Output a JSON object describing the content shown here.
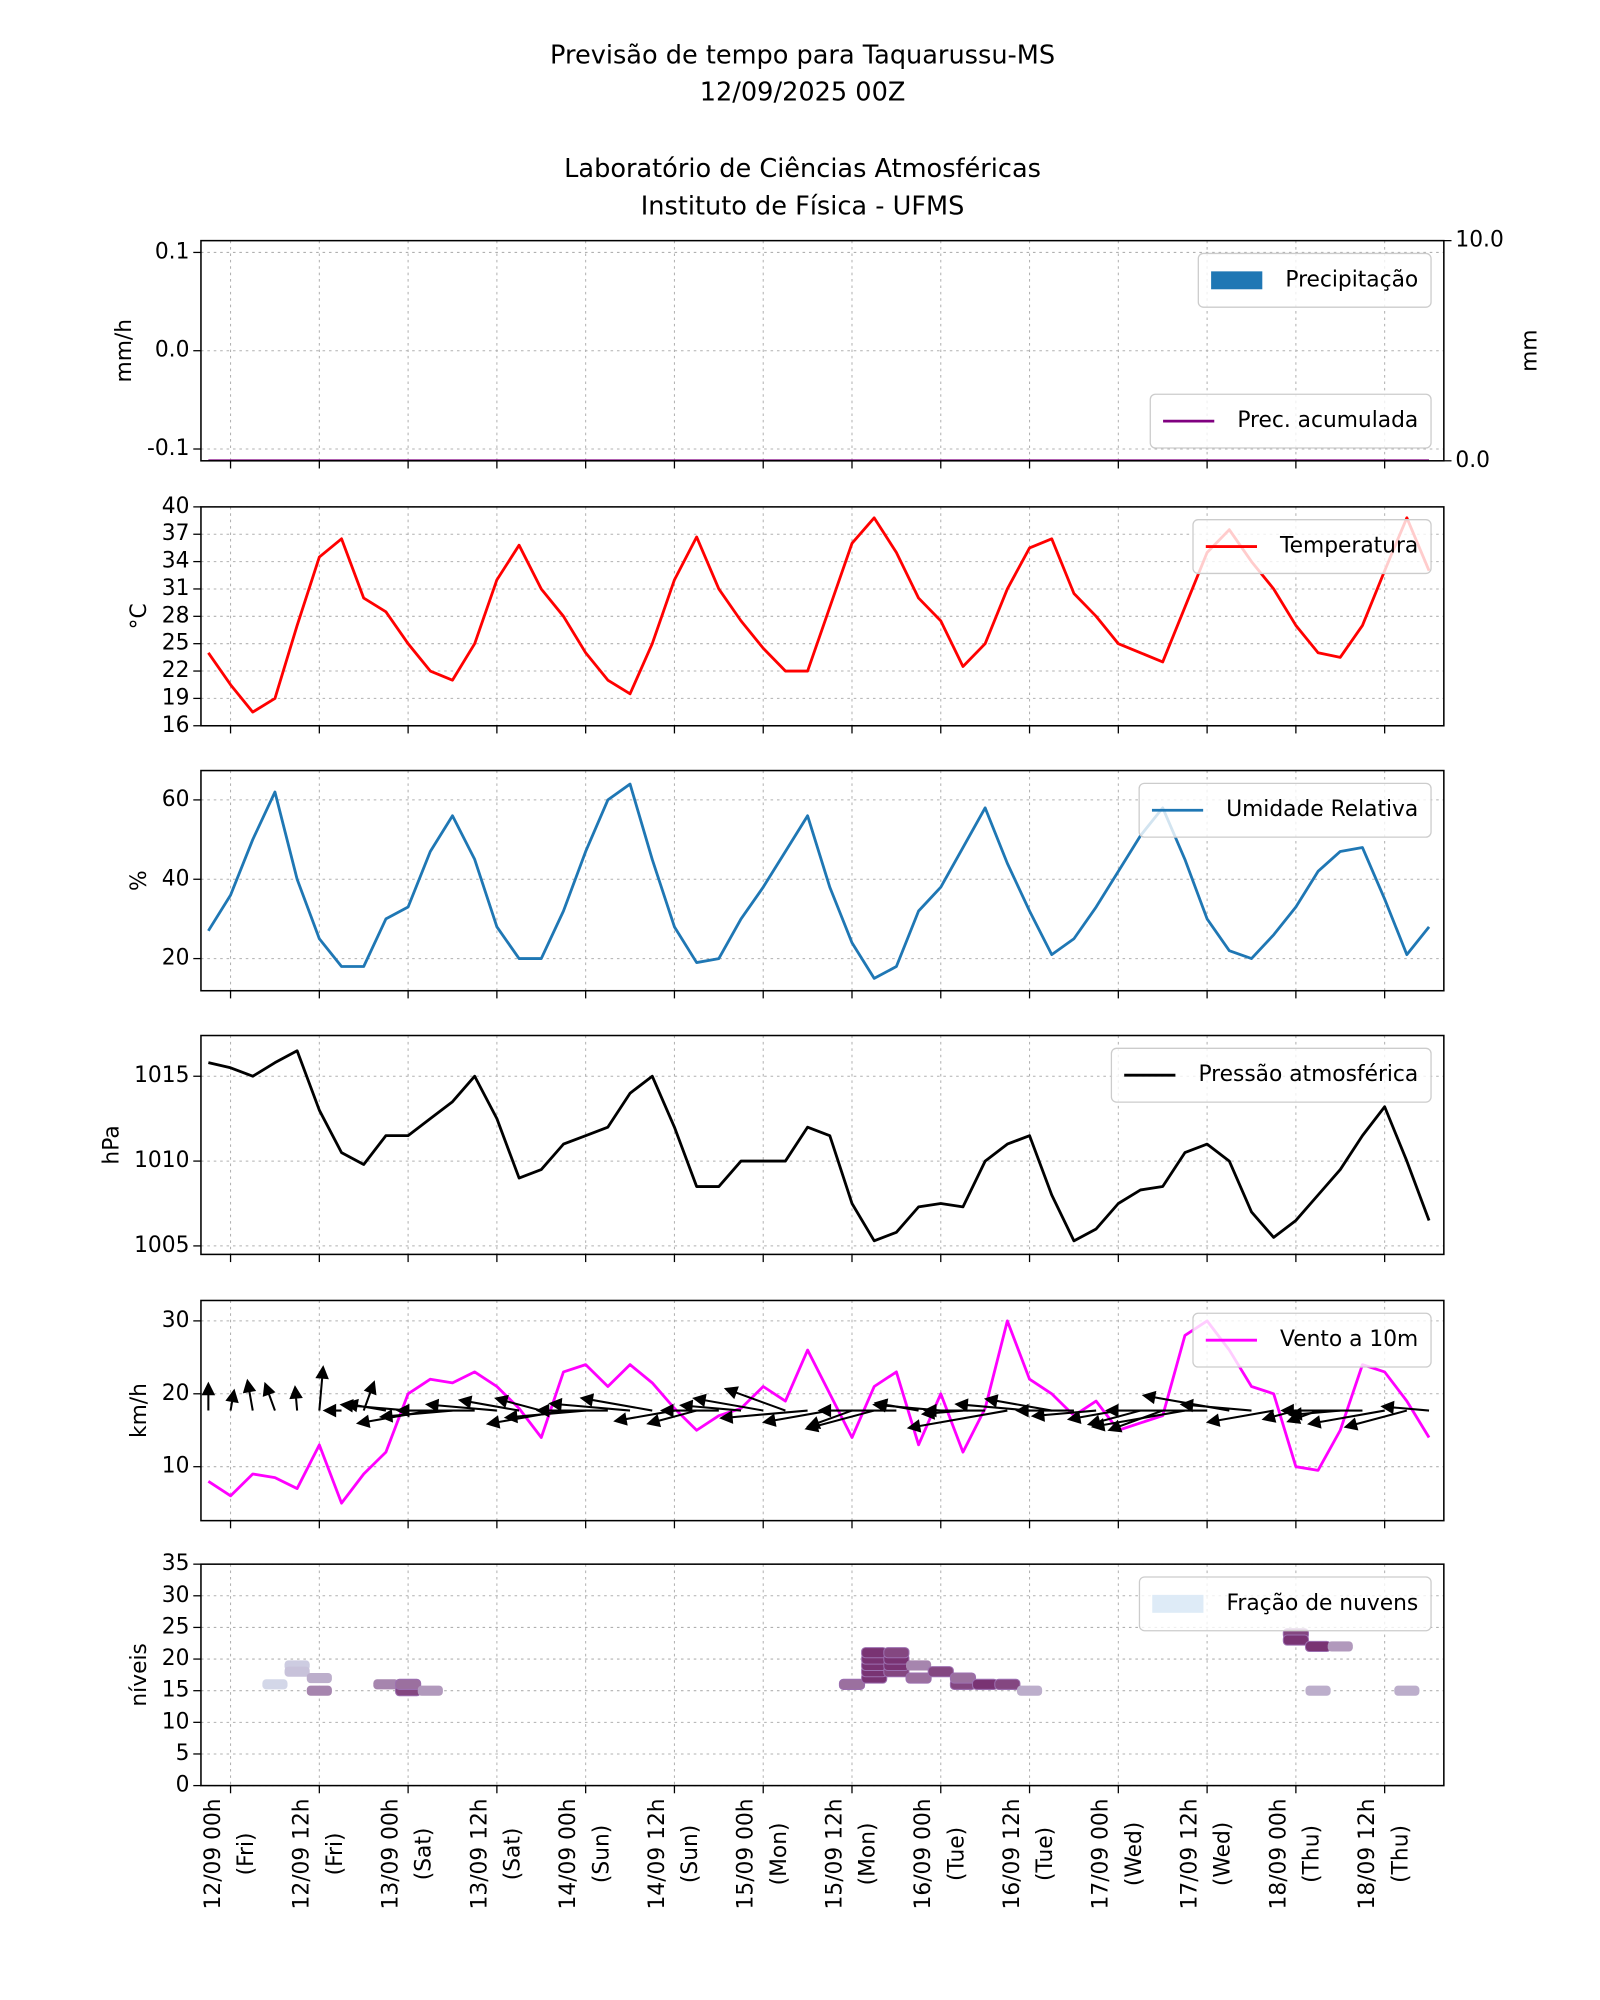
{
  "header": {
    "title": "Previsão de tempo para Taquarussu-MS",
    "subtitle": "12/09/2025 00Z",
    "lab": "Laboratório de Ciências Atmosféricas",
    "institute": "Instituto de Física - UFMS"
  },
  "chart_data": [
    {
      "type": "bar",
      "ylabel": "mm/h",
      "y2label": "mm",
      "grid": true,
      "legend": "upper right",
      "xlim": [
        -4,
        164
      ],
      "ylim": [
        -0.112,
        0.112
      ],
      "yticks": [
        0.1,
        {
          "value": 0,
          "label": "0.0"
        },
        -0.1
      ],
      "y2lim": [
        0,
        10
      ],
      "y2ticks": [
        {
          "value": 10,
          "label": "10.0"
        },
        {
          "value": 0,
          "label": "0.0"
        }
      ],
      "x": [
        -3,
        0,
        3,
        6,
        9,
        12,
        15,
        18,
        21,
        24,
        27,
        30,
        33,
        36,
        39,
        42,
        45,
        48,
        51,
        54,
        57,
        60,
        63,
        66,
        69,
        72,
        75,
        78,
        81,
        84,
        87,
        90,
        93,
        96,
        99,
        102,
        105,
        108,
        111,
        114,
        117,
        120,
        123,
        126,
        129,
        132,
        135,
        138,
        141,
        144,
        147,
        150,
        153,
        156,
        159,
        162
      ],
      "series": [
        {
          "name": "Precipitação",
          "color": "#1f77b4",
          "values": [
            0,
            0,
            0,
            0,
            0,
            0,
            0,
            0,
            0,
            0,
            0,
            0,
            0,
            0,
            0,
            0,
            0,
            0,
            0,
            0,
            0,
            0,
            0,
            0,
            0,
            0,
            0,
            0,
            0,
            0,
            0,
            0,
            0,
            0,
            0,
            0,
            0,
            0,
            0,
            0,
            0,
            0,
            0,
            0,
            0,
            0,
            0,
            0,
            0,
            0,
            0,
            0,
            0,
            0,
            0,
            0
          ]
        },
        {
          "name": "Prec. acumulada",
          "color": "#800080",
          "kind": "line",
          "axis": "y2",
          "legend": "lower right",
          "values": [
            0,
            0,
            0,
            0,
            0,
            0,
            0,
            0,
            0,
            0,
            0,
            0,
            0,
            0,
            0,
            0,
            0,
            0,
            0,
            0,
            0,
            0,
            0,
            0,
            0,
            0,
            0,
            0,
            0,
            0,
            0,
            0,
            0,
            0,
            0,
            0,
            0,
            0,
            0,
            0,
            0,
            0,
            0,
            0,
            0,
            0,
            0,
            0,
            0,
            0,
            0,
            0,
            0,
            0,
            0,
            0
          ]
        }
      ]
    },
    {
      "type": "line",
      "ylabel": "°C",
      "grid": true,
      "legend": "upper right",
      "xlim": [
        -4,
        164
      ],
      "ylim": [
        16,
        40
      ],
      "yticks": [
        16,
        19,
        22,
        25,
        28,
        31,
        34,
        37,
        40
      ],
      "x": [
        -3,
        0,
        3,
        6,
        9,
        12,
        15,
        18,
        21,
        24,
        27,
        30,
        33,
        36,
        39,
        42,
        45,
        48,
        51,
        54,
        57,
        60,
        63,
        66,
        69,
        72,
        75,
        78,
        81,
        84,
        87,
        90,
        93,
        96,
        99,
        102,
        105,
        108,
        111,
        114,
        117,
        120,
        123,
        126,
        129,
        132,
        135,
        138,
        141,
        144,
        147,
        150,
        153,
        156,
        159,
        162
      ],
      "series": [
        {
          "name": "Temperatura",
          "color": "#ff0000",
          "values": [
            24,
            20.5,
            17.5,
            19,
            27,
            34.5,
            36.5,
            30,
            28.5,
            25,
            22,
            21,
            25,
            32,
            35.8,
            31,
            28,
            24,
            21,
            19.5,
            25,
            32,
            36.7,
            31,
            27.5,
            24.5,
            22,
            22,
            29,
            36,
            38.8,
            35,
            30,
            27.5,
            22.5,
            25,
            31,
            35.5,
            36.5,
            30.5,
            28,
            25,
            24,
            23,
            29,
            35,
            37.5,
            34,
            31,
            27,
            24,
            23.5,
            27,
            33,
            38.8,
            33
          ]
        }
      ]
    },
    {
      "type": "line",
      "ylabel": "%",
      "grid": true,
      "legend": "upper right",
      "xlim": [
        -4,
        164
      ],
      "ylim": [
        11.9,
        67.4
      ],
      "yticks": [
        20,
        40,
        60
      ],
      "x": [
        -3,
        0,
        3,
        6,
        9,
        12,
        15,
        18,
        21,
        24,
        27,
        30,
        33,
        36,
        39,
        42,
        45,
        48,
        51,
        54,
        57,
        60,
        63,
        66,
        69,
        72,
        75,
        78,
        81,
        84,
        87,
        90,
        93,
        96,
        99,
        102,
        105,
        108,
        111,
        114,
        117,
        120,
        123,
        126,
        129,
        132,
        135,
        138,
        141,
        144,
        147,
        150,
        153,
        156,
        159,
        162
      ],
      "series": [
        {
          "name": "Umidade Relativa",
          "color": "#1f77b4",
          "values": [
            27,
            36,
            50,
            62,
            40,
            25,
            18,
            18,
            30,
            33,
            47,
            56,
            45,
            28,
            20,
            20,
            32,
            47,
            60,
            64,
            45,
            28,
            19,
            20,
            30,
            38,
            47,
            56,
            38,
            24,
            15,
            18,
            32,
            38,
            48,
            58,
            44,
            32,
            21,
            25,
            33,
            42,
            51,
            58,
            45,
            30,
            22,
            20,
            26,
            33,
            42,
            47,
            48,
            35,
            21,
            28
          ]
        }
      ]
    },
    {
      "type": "line",
      "ylabel": "hPa",
      "grid": true,
      "legend": "upper right",
      "xlim": [
        -4,
        164
      ],
      "ylim": [
        1004.5,
        1017.4
      ],
      "yticks": [
        1005,
        1010,
        1015
      ],
      "x": [
        -3,
        0,
        3,
        6,
        9,
        12,
        15,
        18,
        21,
        24,
        27,
        30,
        33,
        36,
        39,
        42,
        45,
        48,
        51,
        54,
        57,
        60,
        63,
        66,
        69,
        72,
        75,
        78,
        81,
        84,
        87,
        90,
        93,
        96,
        99,
        102,
        105,
        108,
        111,
        114,
        117,
        120,
        123,
        126,
        129,
        132,
        135,
        138,
        141,
        144,
        147,
        150,
        153,
        156,
        159,
        162
      ],
      "series": [
        {
          "name": "Pressão atmosférica",
          "color": "#000000",
          "values": [
            1015.8,
            1015.5,
            1015.0,
            1015.8,
            1016.5,
            1013,
            1010.5,
            1009.8,
            1011.5,
            1011.5,
            1012.5,
            1013.5,
            1015,
            1012.5,
            1009,
            1009.5,
            1011,
            1011.5,
            1012,
            1014,
            1015,
            1012,
            1008.5,
            1008.5,
            1010,
            1010,
            1010,
            1012,
            1011.5,
            1007.5,
            1005.3,
            1005.8,
            1007.3,
            1007.5,
            1007.3,
            1010,
            1011,
            1011.5,
            1008,
            1005.3,
            1006,
            1007.5,
            1008.3,
            1008.5,
            1010.5,
            1011,
            1010,
            1007,
            1005.5,
            1006.5,
            1008,
            1009.5,
            1011.5,
            1013.2,
            1010,
            1006.5
          ]
        }
      ]
    },
    {
      "type": "line",
      "ylabel": "km/h",
      "grid": true,
      "legend": "upper right",
      "xlim": [
        -4,
        164
      ],
      "ylim": [
        2.6,
        32.8
      ],
      "yticks": [
        10,
        20,
        30
      ],
      "x": [
        -3,
        0,
        3,
        6,
        9,
        12,
        15,
        18,
        21,
        24,
        27,
        30,
        33,
        36,
        39,
        42,
        45,
        48,
        51,
        54,
        57,
        60,
        63,
        66,
        69,
        72,
        75,
        78,
        81,
        84,
        87,
        90,
        93,
        96,
        99,
        102,
        105,
        108,
        111,
        114,
        117,
        120,
        123,
        126,
        129,
        132,
        135,
        138,
        141,
        144,
        147,
        150,
        153,
        156,
        159,
        162
      ],
      "series": [
        {
          "name": "Vento a 10m",
          "color": "#ff00ff",
          "values": [
            8,
            6,
            9,
            8.5,
            7,
            13,
            5,
            9,
            12,
            20,
            22,
            21.5,
            23,
            21,
            18,
            14,
            23,
            24,
            21,
            24,
            21.5,
            18,
            15,
            17,
            18,
            21,
            19,
            26,
            20,
            14,
            21,
            23,
            13,
            20,
            12,
            18,
            30,
            22,
            20,
            17,
            19,
            15,
            16,
            17,
            28,
            30,
            26,
            21,
            20,
            10,
            9.5,
            15,
            24,
            23,
            19,
            14
          ]
        }
      ],
      "arrow_color": "#000000",
      "directions": [
        180,
        190,
        170,
        160,
        175,
        185,
        90,
        200,
        100,
        95,
        80,
        85,
        90,
        95,
        100,
        105,
        80,
        85,
        90,
        95,
        100,
        80,
        75,
        90,
        95,
        100,
        110,
        85,
        80,
        70,
        75,
        90,
        100,
        95,
        85,
        90,
        80,
        95,
        100,
        90,
        85,
        80,
        75,
        70,
        80,
        90,
        100,
        95,
        80,
        75,
        70,
        85,
        90,
        80,
        75,
        95
      ]
    },
    {
      "type": "heatmap",
      "ylabel": "níveis",
      "grid": true,
      "legend": "upper right",
      "xlim": [
        -4,
        164
      ],
      "ylim": [
        0,
        35
      ],
      "yticks": [
        0,
        5,
        10,
        15,
        20,
        25,
        30,
        35
      ],
      "xticks": [
        {
          "value": 0,
          "label": [
            "12/09 00h",
            "(Fri)"
          ]
        },
        {
          "value": 12,
          "label": [
            "12/09 12h",
            "(Fri)"
          ]
        },
        {
          "value": 24,
          "label": [
            "13/09 00h",
            "(Sat)"
          ]
        },
        {
          "value": 36,
          "label": [
            "13/09 12h",
            "(Sat)"
          ]
        },
        {
          "value": 48,
          "label": [
            "14/09 00h",
            "(Sun)"
          ]
        },
        {
          "value": 60,
          "label": [
            "14/09 12h",
            "(Sun)"
          ]
        },
        {
          "value": 72,
          "label": [
            "15/09 00h",
            "(Mon)"
          ]
        },
        {
          "value": 84,
          "label": [
            "15/09 12h",
            "(Mon)"
          ]
        },
        {
          "value": 96,
          "label": [
            "16/09 00h",
            "(Tue)"
          ]
        },
        {
          "value": 108,
          "label": [
            "16/09 12h",
            "(Tue)"
          ]
        },
        {
          "value": 120,
          "label": [
            "17/09 00h",
            "(Wed)"
          ]
        },
        {
          "value": 132,
          "label": [
            "17/09 12h",
            "(Wed)"
          ]
        },
        {
          "value": 144,
          "label": [
            "18/09 00h",
            "(Thu)"
          ]
        },
        {
          "value": 156,
          "label": [
            "18/09 12h",
            "(Thu)"
          ]
        }
      ],
      "cells": {
        "name": "Fração de nuvens",
        "colors": [
          "#deebf7",
          "#6e1e64"
        ],
        "x": [
          6,
          9,
          9,
          12,
          12,
          21,
          24,
          24,
          27,
          84,
          87,
          87,
          87,
          87,
          87,
          90,
          90,
          90,
          90,
          93,
          93,
          96,
          99,
          99,
          102,
          105,
          108,
          144,
          144,
          147,
          150,
          147,
          159
        ],
        "level": [
          16,
          19,
          18,
          17,
          15,
          16,
          15,
          16,
          15,
          16,
          17,
          18,
          19,
          20,
          21,
          18,
          19,
          20,
          21,
          17,
          19,
          18,
          16,
          17,
          16,
          16,
          15,
          24,
          23,
          22,
          22,
          15,
          15
        ],
        "fraction": [
          0.1,
          0.15,
          0.2,
          0.3,
          0.5,
          0.5,
          0.8,
          0.6,
          0.4,
          0.6,
          0.9,
          0.9,
          0.9,
          0.9,
          0.9,
          0.8,
          0.9,
          0.9,
          0.8,
          0.6,
          0.5,
          0.8,
          0.8,
          0.6,
          0.9,
          0.8,
          0.3,
          0.8,
          0.9,
          0.9,
          0.4,
          0.3,
          0.3
        ]
      }
    }
  ]
}
